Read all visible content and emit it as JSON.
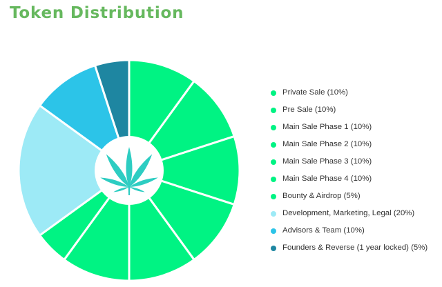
{
  "page": {
    "title": "Token Distribution"
  },
  "colors": {
    "title": "#66b85e",
    "center_disc": "#ffffff",
    "leaf": "#2dcdc2",
    "slice_separator": "#ffffff"
  },
  "center_icon": "cannabis-leaf-icon",
  "chart_data": {
    "type": "pie",
    "title": "",
    "style": "donut",
    "start_angle": "12 o'clock",
    "direction": "clockwise",
    "legend_position": "right",
    "unit": "%",
    "slices": [
      {
        "label": "Private Sale (10%)",
        "value": 10,
        "color": "#00f383"
      },
      {
        "label": "Pre Sale (10%)",
        "value": 10,
        "color": "#00f383"
      },
      {
        "label": "Main Sale Phase 1 (10%)",
        "value": 10,
        "color": "#00f383"
      },
      {
        "label": "Main Sale Phase 2 (10%)",
        "value": 10,
        "color": "#00f383"
      },
      {
        "label": "Main Sale Phase 3 (10%)",
        "value": 10,
        "color": "#00f383"
      },
      {
        "label": "Main Sale Phase 4 (10%)",
        "value": 10,
        "color": "#00f383"
      },
      {
        "label": "Bounty & Airdrop (5%)",
        "value": 5,
        "color": "#00f383"
      },
      {
        "label": "Development, Marketing, Legal (20%)",
        "value": 20,
        "color": "#9deaf6"
      },
      {
        "label": "Advisors & Team (10%)",
        "value": 10,
        "color": "#2cc4e8"
      },
      {
        "label": "Founders & Reverse (1 year locked) (5%)",
        "value": 5,
        "color": "#1e86a1"
      }
    ]
  }
}
